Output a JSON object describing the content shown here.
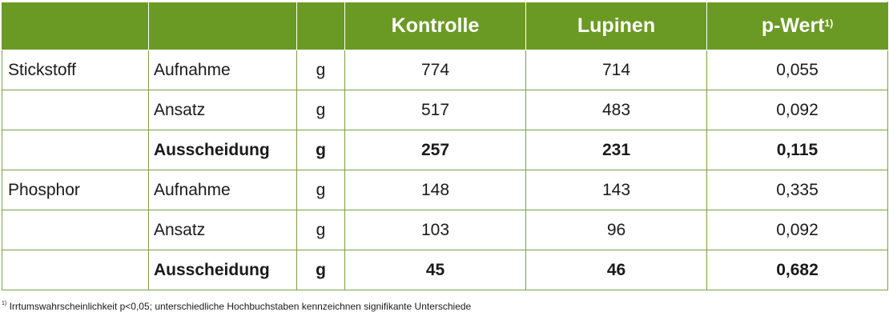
{
  "header": {
    "col1": "",
    "col2": "",
    "col3": "",
    "kontrolle": "Kontrolle",
    "lupinen": "Lupinen",
    "pwert": "p-Wert",
    "pwert_sup": "1)"
  },
  "rows": [
    {
      "group": "Stickstoff",
      "item": "Aufnahme",
      "unit": "g",
      "kontrolle": "774",
      "lupinen": "714",
      "pwert": "0,055"
    },
    {
      "group": "",
      "item": "Ansatz",
      "unit": "g",
      "kontrolle": "517",
      "lupinen": "483",
      "pwert": "0,092"
    },
    {
      "group": "",
      "item": "Ausscheidung",
      "unit": "g",
      "kontrolle": "257",
      "lupinen": "231",
      "pwert": "0,115"
    },
    {
      "group": "Phosphor",
      "item": "Aufnahme",
      "unit": "g",
      "kontrolle": "148",
      "lupinen": "143",
      "pwert": "0,335"
    },
    {
      "group": "",
      "item": "Ansatz",
      "unit": "g",
      "kontrolle": "103",
      "lupinen": "96",
      "pwert": "0,092"
    },
    {
      "group": "",
      "item": "Ausscheidung",
      "unit": "g",
      "kontrolle": "45",
      "lupinen": "46",
      "pwert": "0,682"
    }
  ],
  "footnote": {
    "marker": "1)",
    "text": " Irrtumswahrscheinlichkeit p<0,05; unterschiedliche Hochbuchstaben kennzeichnen signifikante Unterschiede"
  },
  "colors": {
    "header_bg": "#6a9a23",
    "border": "#7ba23f"
  }
}
